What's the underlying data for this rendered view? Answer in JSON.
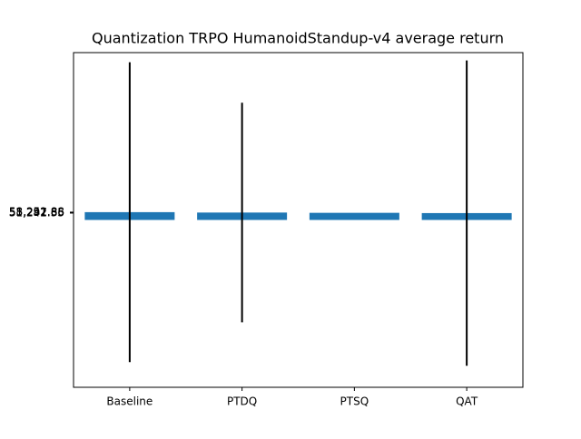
{
  "chart_data": {
    "type": "bar",
    "title": "Quantization TRPO HumanoidStandup-v4 average return",
    "categories": [
      "Baseline",
      "PTDQ",
      "PTSQ",
      "QAT"
    ],
    "values": [
      58252.88,
      55297.66,
      53251.85,
      51242.35
    ],
    "errors": [
      1120000,
      820000,
      0,
      1140000
    ],
    "color": "#1f77b4",
    "error_color": "#000000",
    "ylim": [
      -1250000,
      1250000
    ],
    "yticks": [
      {
        "value": 58252.88,
        "label": "58,252.88"
      },
      {
        "value": 55297.66,
        "label": "55,297.66"
      },
      {
        "value": 53251.85,
        "label": "53,251.85"
      },
      {
        "value": 51242.35,
        "label": "51,242.35"
      }
    ],
    "grid": false
  }
}
